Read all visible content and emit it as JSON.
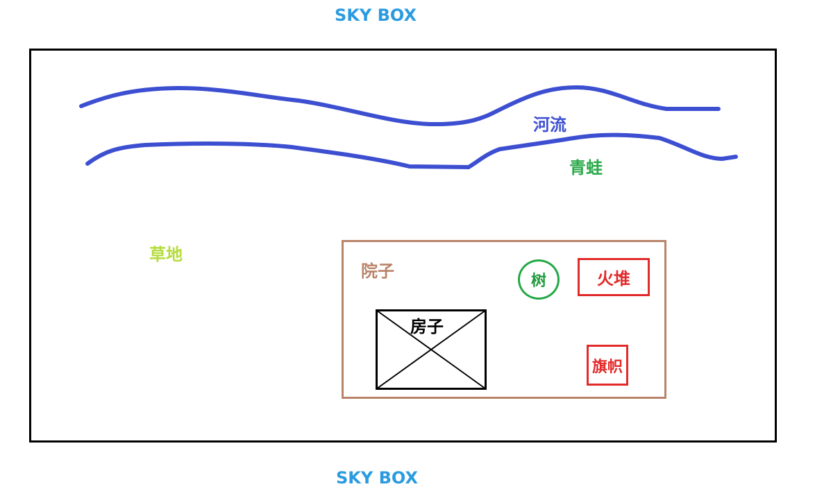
{
  "top_label": "SKY BOX",
  "bottom_label": "SKY BOX",
  "river_label": "河流",
  "frog_label": "青蛙",
  "grass_label": "草地",
  "yard_label": "院子",
  "tree_label": "树",
  "fire_label": "火堆",
  "house_label": "房子",
  "flag_label": "旗帜",
  "colors": {
    "sky_box": "#2b9be0",
    "river": "#3d4fd1",
    "frog": "#2ca94a",
    "grass": "#b5dc3c",
    "yard": "#b9836a",
    "tree": "#22a845",
    "fire": "#e22a2a",
    "flag": "#e22a2a",
    "house": "#000000"
  }
}
